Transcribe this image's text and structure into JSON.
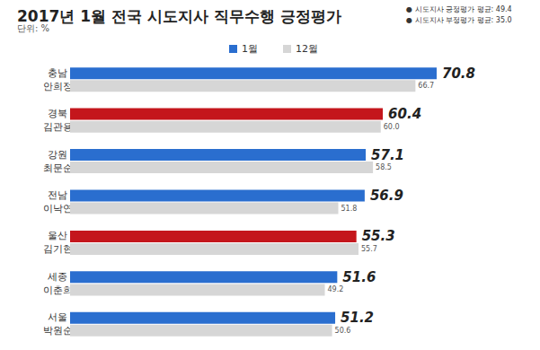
{
  "chart_data": {
    "type": "bar",
    "orientation": "horizontal",
    "title": "2017년 1월 전국 시도지사 직무수행 긍정평가",
    "subtitle": "단위: %",
    "annotations": [
      "● 시도지사 긍정평가 평균: 49.4",
      "● 시도지사 부정평가 평균: 35.0"
    ],
    "categories": [
      "충남\n안희정",
      "경북\n김관용",
      "강원\n최문순",
      "전남\n이낙연",
      "울산\n김기현",
      "세종\n이춘희",
      "서울\n박원순"
    ],
    "series": [
      {
        "name": "1월",
        "color": "#2a6ecf",
        "colors": [
          "#2a6ecf",
          "#c4161c",
          "#2a6ecf",
          "#2a6ecf",
          "#c4161c",
          "#2a6ecf",
          "#2a6ecf"
        ],
        "values": [
          70.8,
          60.4,
          57.1,
          56.9,
          55.3,
          51.6,
          51.2
        ]
      },
      {
        "name": "12월",
        "color": "#d6d6d6",
        "values": [
          66.7,
          60.0,
          58.5,
          51.8,
          55.7,
          49.2,
          50.6
        ],
        "value_labels": [
          "66.7",
          "60.0",
          "58.5",
          "51.8",
          "55.7",
          "49.2",
          "50.6"
        ]
      }
    ],
    "xlim": [
      0,
      80
    ],
    "grid": false,
    "tick_labels": "y",
    "data_labels": true,
    "legend": "top"
  }
}
